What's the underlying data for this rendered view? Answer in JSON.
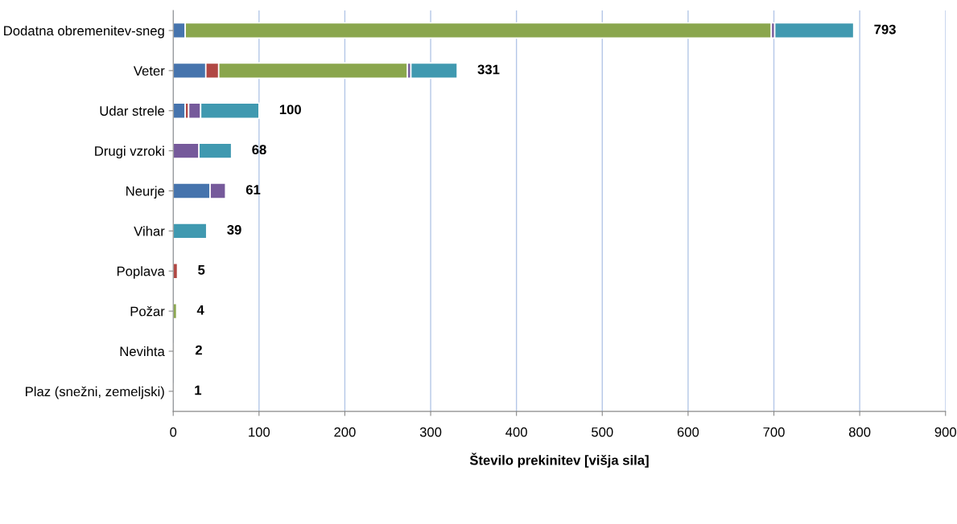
{
  "chart_data": {
    "type": "bar",
    "orientation": "horizontal",
    "stacked": true,
    "xlabel": "Število prekinitev [višja sila]",
    "categories": [
      "Dodatna obremenitev-sneg",
      "Veter",
      "Udar strele",
      "Drugi vzroki",
      "Neurje",
      "Vihar",
      "Poplava",
      "Požar",
      "Nevihta",
      "Plaz (snežni, zemeljski)"
    ],
    "series": [
      {
        "color": "#4674ad",
        "values": [
          14,
          38,
          14,
          null,
          43,
          null,
          null,
          null,
          null,
          null
        ]
      },
      {
        "color": "#b04743",
        "values": [
          null,
          15,
          4,
          null,
          null,
          null,
          5,
          null,
          null,
          null
        ]
      },
      {
        "color": "#8aa64d",
        "values": [
          683,
          220,
          null,
          null,
          null,
          null,
          null,
          4,
          null,
          null
        ]
      },
      {
        "color": "#765a9b",
        "values": [
          4,
          4,
          14,
          30,
          18,
          null,
          null,
          null,
          null,
          null
        ]
      },
      {
        "color": "#4099b0",
        "values": [
          92,
          54,
          68,
          38,
          null,
          39,
          null,
          null,
          null,
          null
        ]
      },
      {
        "color": "#eeeeee",
        "values": [
          null,
          null,
          null,
          null,
          null,
          null,
          null,
          null,
          2,
          1
        ]
      }
    ],
    "totals": [
      "793",
      "331",
      "100",
      "68",
      "61",
      "39",
      "5",
      "4",
      "2",
      "1"
    ],
    "xlim": [
      0,
      900
    ],
    "xticks": [
      0,
      100,
      200,
      300,
      400,
      500,
      600,
      700,
      800,
      900
    ],
    "grid": "x",
    "legend": false
  }
}
